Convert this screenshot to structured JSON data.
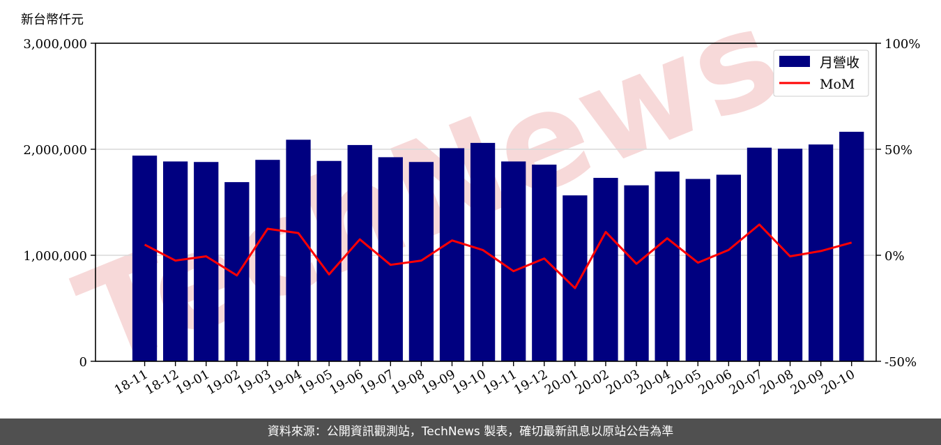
{
  "unit_label": "新台幣仟元",
  "footer_text": "資料來源：公開資訊觀測站，TechNews 製表，確切最新訊息以原站公告為準",
  "watermark": "TechNews",
  "colors": {
    "bar": "#000080",
    "line": "#ff0000",
    "grid": "#d9d9d9",
    "footer_bg": "#505050",
    "watermark": "#f4cccc"
  },
  "chart_data": {
    "type": "bar",
    "categories": [
      "18-11",
      "18-12",
      "19-01",
      "19-02",
      "19-03",
      "19-04",
      "19-05",
      "19-06",
      "19-07",
      "19-08",
      "19-09",
      "19-10",
      "19-11",
      "19-12",
      "20-01",
      "20-02",
      "20-03",
      "20-04",
      "20-05",
      "20-06",
      "20-07",
      "20-08",
      "20-09",
      "20-10"
    ],
    "series": [
      {
        "name": "月營收",
        "type": "bar",
        "axis": "left",
        "values": [
          1940000,
          1885000,
          1880000,
          1690000,
          1900000,
          2090000,
          1890000,
          2040000,
          1925000,
          1880000,
          2010000,
          2060000,
          1885000,
          1855000,
          1565000,
          1730000,
          1660000,
          1790000,
          1720000,
          1760000,
          2015000,
          2005000,
          2045000,
          2165000
        ]
      },
      {
        "name": "MoM",
        "type": "line",
        "axis": "right",
        "values": [
          5,
          -2.5,
          -0.5,
          -9.5,
          12.5,
          10.5,
          -9,
          7.5,
          -4.5,
          -2.5,
          7,
          2.5,
          -7.5,
          -1.5,
          -15.5,
          11,
          -4,
          8,
          -3.5,
          2.5,
          14.5,
          -0.5,
          2,
          6
        ]
      }
    ],
    "y_left": {
      "ylim": [
        0,
        3000000
      ],
      "ticks": [
        0,
        1000000,
        2000000,
        3000000
      ],
      "tick_labels": [
        "0",
        "1,000,000",
        "2,000,000",
        "3,000,000"
      ]
    },
    "y_right": {
      "ylim": [
        -50,
        100
      ],
      "ticks": [
        -50,
        0,
        50,
        100
      ],
      "tick_labels": [
        "-50%",
        "0%",
        "50%",
        "100%"
      ]
    },
    "grid": true,
    "legend_position": "top-right"
  }
}
